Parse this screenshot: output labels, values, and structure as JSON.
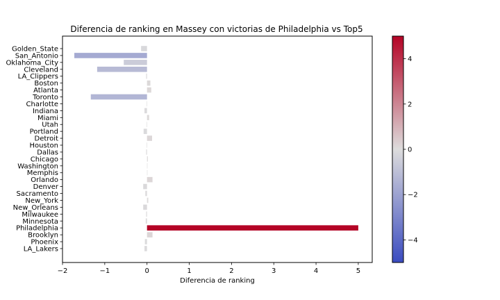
{
  "chart_data": {
    "type": "bar",
    "orientation": "horizontal",
    "title": "Diferencia de ranking en Massey con victorias de Philadelphia vs Top5",
    "xlabel": "Diferencia de ranking",
    "ylabel": "",
    "xlim": [
      -2.0,
      5.33
    ],
    "xticks": [
      -2,
      -1,
      0,
      1,
      2,
      3,
      4,
      5
    ],
    "xtick_labels": [
      "−2",
      "−1",
      "0",
      "1",
      "2",
      "3",
      "4",
      "5"
    ],
    "grid": false,
    "colormap": "coolwarm",
    "categories": [
      "Golden_State",
      "San_Antonio",
      "Oklahoma_City",
      "Cleveland",
      "LA_Clippers",
      "Boston",
      "Atlanta",
      "Toronto",
      "Charlotte",
      "Indiana",
      "Miami",
      "Utah",
      "Portland",
      "Detroit",
      "Houston",
      "Dallas",
      "Chicago",
      "Washington",
      "Memphis",
      "Orlando",
      "Denver",
      "Sacramento",
      "New_York",
      "New_Orleans",
      "Milwaukee",
      "Minnesota",
      "Philadelphia",
      "Brooklyn",
      "Phoenix",
      "LA_Lakers"
    ],
    "values": [
      -0.14,
      -1.72,
      -0.55,
      -1.18,
      -0.02,
      0.08,
      0.1,
      -1.33,
      -0.01,
      -0.06,
      0.05,
      -0.01,
      -0.08,
      0.12,
      -0.01,
      -0.02,
      0.02,
      0.01,
      0.0,
      0.13,
      -0.09,
      -0.04,
      0.03,
      -0.09,
      -0.02,
      -0.03,
      5.0,
      0.13,
      -0.05,
      -0.06
    ],
    "colorbar": {
      "vmin": -5,
      "vmax": 5,
      "ticks": [
        -4,
        -2,
        0,
        2,
        4
      ],
      "tick_labels": [
        "−4",
        "−2",
        "0",
        "2",
        "4"
      ],
      "colors": {
        "low": "#3b4cc0",
        "mid": "#dddcdc",
        "high": "#b40426"
      }
    }
  }
}
